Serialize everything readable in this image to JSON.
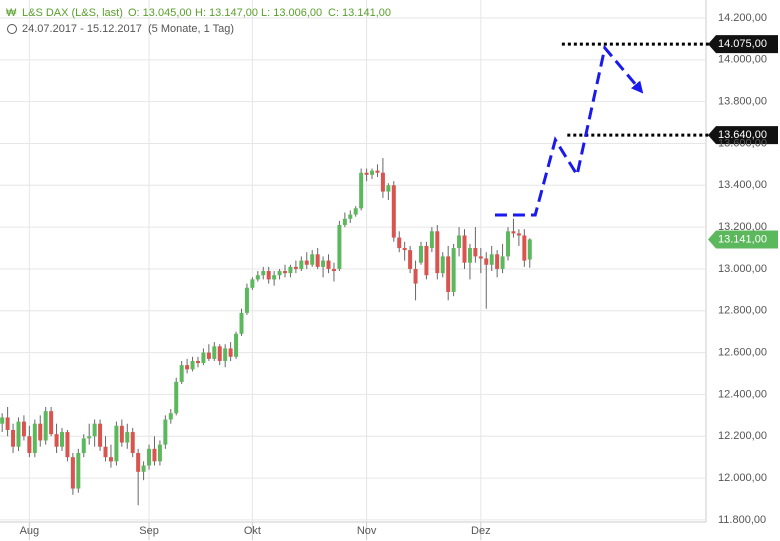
{
  "chart_data": {
    "type": "candlestick",
    "header": [
      "L&S DAX (L&S, last)",
      "O: 13.045,00",
      "H: 13.147,00",
      "L: 13.006,00",
      "C: 13.141,00"
    ],
    "period": "24.07.2017 - 15.12.2017",
    "span": "(5 Monate, 1 Tag)",
    "up_color": "#5cb85c",
    "down_color": "#d9534f",
    "open": [
      12260,
      12290,
      12230,
      12150,
      12270,
      12200,
      12120,
      12260,
      12180,
      12320,
      12210,
      12150,
      12220,
      12100,
      11950,
      12120,
      12190,
      12200,
      12260,
      12150,
      12100,
      12080,
      12250,
      12170,
      12220,
      12120,
      12030,
      12060,
      12140,
      12080,
      12160,
      12280,
      12310,
      12460,
      12540,
      12520,
      12560,
      12550,
      12600,
      12570,
      12630,
      12560,
      12620,
      12580,
      12690,
      12790,
      12910,
      12950,
      12970,
      12990,
      12950,
      12970,
      12990,
      12980,
      13010,
      13000,
      13040,
      13020,
      13070,
      13010,
      13040,
      13000,
      13000,
      13210,
      13240,
      13260,
      13290,
      13460,
      13450,
      13470,
      13460,
      13370,
      13400,
      13150,
      13100,
      13090,
      13000,
      13030,
      13110,
      13100,
      13180,
      12980,
      13060,
      12890,
      13100,
      13160,
      13030,
      13100,
      13060,
      13050,
      13020,
      13070,
      13000,
      13060,
      13180,
      13170,
      13160,
      13045
    ],
    "high": [
      12310,
      12340,
      12260,
      12290,
      12300,
      12250,
      12280,
      12300,
      12340,
      12340,
      12260,
      12240,
      12230,
      12120,
      12140,
      12210,
      12260,
      12280,
      12280,
      12200,
      12160,
      12270,
      12280,
      12260,
      12240,
      12140,
      12080,
      12160,
      12200,
      12180,
      12300,
      12330,
      12480,
      12560,
      12570,
      12580,
      12580,
      12620,
      12640,
      12650,
      12640,
      12640,
      12650,
      12700,
      12810,
      12930,
      12960,
      12990,
      13010,
      13010,
      12990,
      13000,
      13020,
      13020,
      13040,
      13060,
      13080,
      13090,
      13100,
      13060,
      13070,
      13030,
      13230,
      13270,
      13280,
      13300,
      13480,
      13480,
      13480,
      13500,
      13530,
      13410,
      13420,
      13180,
      13130,
      13110,
      13040,
      13130,
      13130,
      13200,
      13210,
      13080,
      13110,
      13120,
      13200,
      13190,
      13120,
      13200,
      13100,
      13080,
      13110,
      13090,
      13120,
      13200,
      13240,
      13190,
      13190,
      13147
    ],
    "low": [
      12220,
      12200,
      12120,
      12130,
      12180,
      12100,
      12100,
      12150,
      12160,
      12200,
      12120,
      12130,
      12080,
      11920,
      11930,
      12100,
      12160,
      12150,
      12130,
      12080,
      12050,
      12060,
      12150,
      12140,
      12100,
      11870,
      11990,
      12040,
      12060,
      12060,
      12140,
      12260,
      12300,
      12450,
      12500,
      12510,
      12530,
      12540,
      12560,
      12560,
      12540,
      12530,
      12560,
      12570,
      12680,
      12780,
      12900,
      12940,
      12950,
      12930,
      12920,
      12950,
      12960,
      12960,
      12980,
      12990,
      13000,
      13010,
      13000,
      12960,
      12980,
      12940,
      12990,
      13200,
      13220,
      13250,
      13280,
      13420,
      13430,
      13440,
      13340,
      13330,
      13130,
      13080,
      13040,
      12980,
      12850,
      13020,
      12950,
      13080,
      12950,
      12960,
      12850,
      12870,
      13060,
      13000,
      12950,
      13030,
      12980,
      12810,
      12990,
      12960,
      12980,
      13040,
      13150,
      13110,
      13010,
      13006
    ],
    "close": [
      12290,
      12230,
      12150,
      12270,
      12200,
      12120,
      12260,
      12180,
      12320,
      12210,
      12150,
      12220,
      12100,
      11950,
      12120,
      12190,
      12200,
      12260,
      12150,
      12100,
      12080,
      12250,
      12170,
      12220,
      12120,
      12030,
      12060,
      12140,
      12080,
      12160,
      12280,
      12310,
      12460,
      12540,
      12520,
      12560,
      12550,
      12600,
      12570,
      12630,
      12560,
      12620,
      12580,
      12690,
      12790,
      12910,
      12950,
      12970,
      12990,
      12950,
      12970,
      12990,
      12980,
      13010,
      13000,
      13040,
      13020,
      13070,
      13010,
      13040,
      13000,
      12990,
      13210,
      13240,
      13260,
      13290,
      13460,
      13450,
      13470,
      13460,
      13370,
      13400,
      13150,
      13100,
      13090,
      13000,
      12930,
      13110,
      12970,
      13180,
      12980,
      13060,
      12890,
      13100,
      13160,
      13030,
      13100,
      13060,
      13050,
      13020,
      13070,
      13000,
      13060,
      13180,
      13170,
      13160,
      13040,
      13141
    ],
    "xlim": [
      -0.4,
      129.4
    ],
    "xticks": [
      {
        "value": 5,
        "label": "Aug"
      },
      {
        "value": 27,
        "label": "Sep"
      },
      {
        "value": 46,
        "label": "Okt"
      },
      {
        "value": 67,
        "label": "Nov"
      },
      {
        "value": 88,
        "label": "Dez"
      }
    ],
    "ylim": [
      11790,
      14286
    ],
    "yticks": [
      {
        "value": 11800,
        "label": "11.800,00"
      },
      {
        "value": 12000,
        "label": "12.000,00"
      },
      {
        "value": 12200,
        "label": "12.200,00"
      },
      {
        "value": 12400,
        "label": "12.400,00"
      },
      {
        "value": 12600,
        "label": "12.600,00"
      },
      {
        "value": 12800,
        "label": "12.800,00"
      },
      {
        "value": 13000,
        "label": "13.000,00"
      },
      {
        "value": 13200,
        "label": "13.200,00"
      },
      {
        "value": 13400,
        "label": "13.400,00"
      },
      {
        "value": 13600,
        "label": "13.600,00"
      },
      {
        "value": 13800,
        "label": "13.800,00"
      },
      {
        "value": 14000,
        "label": "14.000,00"
      },
      {
        "value": 14200,
        "label": "14.200,00"
      }
    ],
    "grid": true,
    "levels": [
      {
        "value": 14075,
        "label": "14.075,00",
        "x": 102.9
      },
      {
        "value": 13640,
        "label": "13.640,00",
        "x": 103.9
      }
    ],
    "last_price": {
      "value": 13141,
      "label": "13.141,00"
    },
    "forecast": {
      "color": "#1a1aee",
      "x": [
        90.6,
        98,
        101.7,
        105.7,
        110.8,
        117.3
      ],
      "y": [
        13258,
        13258,
        13617,
        13450,
        14057,
        13856
      ]
    }
  }
}
